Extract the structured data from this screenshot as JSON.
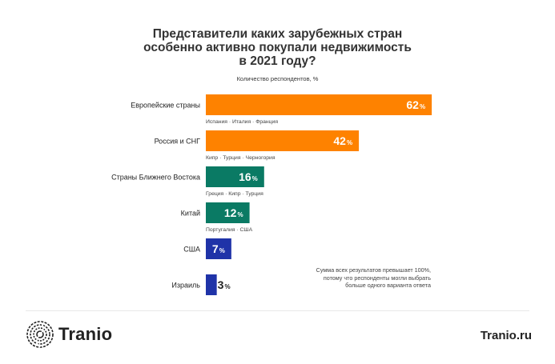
{
  "title": "Представители каких зарубежных стран\nособенно активно покупали недвижимость\nв 2021 году?",
  "subtitle": "Количество респондентов, %",
  "note": "Сумма всех результатов превышает 100%,\nпотому что респонденты могли выбрать\nбольше одного варианта ответа",
  "brand": {
    "name": "Tranio",
    "url": "Tranio.ru",
    "logo_icon": "tranio-swirl-logo-icon"
  },
  "chart_data": {
    "type": "bar",
    "orientation": "horizontal",
    "title": "Представители каких зарубежных стран особенно активно покупали недвижимость в 2021 году?",
    "ylabel": "Количество респондентов, %",
    "xlim": [
      0,
      100
    ],
    "grid": false,
    "categories": [
      "Европейские страны",
      "Россия и СНГ",
      "Страны Ближнего Востока",
      "Китай",
      "США",
      "Израиль"
    ],
    "values": [
      62,
      42,
      16,
      12,
      7,
      3
    ],
    "unit": "%",
    "sublabels": [
      "Испания · Италия · Франция",
      "Кипр · Турция · Черногория",
      "Греция · Кипр · Турция",
      "Португалия · США",
      "",
      ""
    ],
    "colors": [
      "#fe8200",
      "#fe8200",
      "#0a7a64",
      "#0a7a64",
      "#1f33a8",
      "#1f33a8"
    ]
  }
}
